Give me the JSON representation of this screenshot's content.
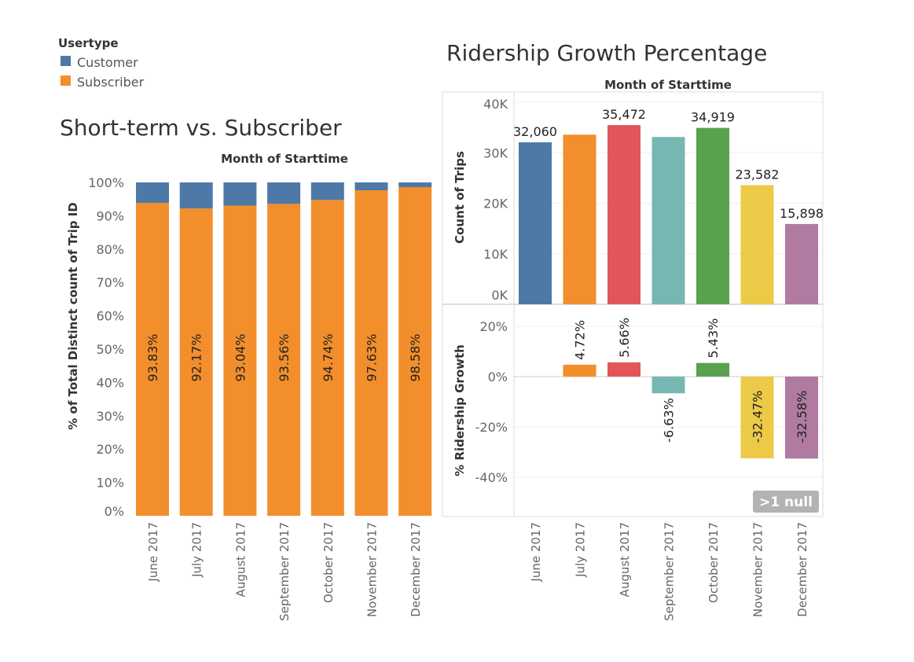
{
  "legend": {
    "title": "Usertype",
    "items": [
      {
        "label": "Customer",
        "color": "#4e79a7"
      },
      {
        "label": "Subscriber",
        "color": "#f28e2b"
      }
    ]
  },
  "left_title": "Short-term vs. Subscriber",
  "right_title": "Ridership Growth Percentage",
  "null_badge": ">1 null",
  "chart_data": [
    {
      "type": "bar",
      "stacked": true,
      "title": "Short-term vs. Subscriber",
      "column_header": "Month of Starttime",
      "ylabel": "% of Total Distinct count of Trip ID",
      "ylim": [
        0,
        100
      ],
      "yticks": [
        "0%",
        "10%",
        "20%",
        "30%",
        "40%",
        "50%",
        "60%",
        "70%",
        "80%",
        "90%",
        "100%"
      ],
      "categories": [
        "June 2017",
        "July 2017",
        "August 2017",
        "September 2017",
        "October 2017",
        "November 2017",
        "December 2017"
      ],
      "series": [
        {
          "name": "Subscriber",
          "color": "#f28e2b",
          "values": [
            93.83,
            92.17,
            93.04,
            93.56,
            94.74,
            97.63,
            98.58
          ],
          "labels": [
            "93.83%",
            "92.17%",
            "93.04%",
            "93.56%",
            "94.74%",
            "97.63%",
            "98.58%"
          ]
        },
        {
          "name": "Customer",
          "color": "#4e79a7",
          "values": [
            6.17,
            7.83,
            6.96,
            6.44,
            5.26,
            2.37,
            1.42
          ]
        }
      ]
    },
    {
      "type": "bar",
      "title": "Ridership Growth Percentage",
      "column_header": "Month of Starttime",
      "ylabel": "Count of Trips",
      "ylim": [
        0,
        40000
      ],
      "yticks": [
        "0K",
        "10K",
        "20K",
        "30K",
        "40K"
      ],
      "categories": [
        "June 2017",
        "July 2017",
        "August 2017",
        "September 2017",
        "October 2017",
        "November 2017",
        "December 2017"
      ],
      "colors": [
        "#4e79a7",
        "#f28e2b",
        "#e15759",
        "#76b7b2",
        "#59a14f",
        "#edc948",
        "#b07aa1"
      ],
      "values": [
        32060,
        33573,
        35472,
        33120,
        34919,
        23582,
        15898
      ],
      "labels": [
        "32,060",
        "",
        "35,472",
        "",
        "34,919",
        "23,582",
        "15,898"
      ]
    },
    {
      "type": "bar",
      "title": "Ridership Growth Percentage",
      "ylabel": "% Ridership Growth",
      "ylim": [
        -50,
        25
      ],
      "yticks": [
        "-40%",
        "-20%",
        "0%",
        "20%"
      ],
      "categories": [
        "June 2017",
        "July 2017",
        "August 2017",
        "September 2017",
        "October 2017",
        "November 2017",
        "December 2017"
      ],
      "colors": [
        "#4e79a7",
        "#f28e2b",
        "#e15759",
        "#76b7b2",
        "#59a14f",
        "#edc948",
        "#b07aa1"
      ],
      "values": [
        null,
        4.72,
        5.66,
        -6.63,
        5.43,
        -32.47,
        -32.58
      ],
      "labels": [
        "",
        "4.72%",
        "5.66%",
        "-6.63%",
        "5.43%",
        "-32.47%",
        "-32.58%"
      ]
    }
  ]
}
